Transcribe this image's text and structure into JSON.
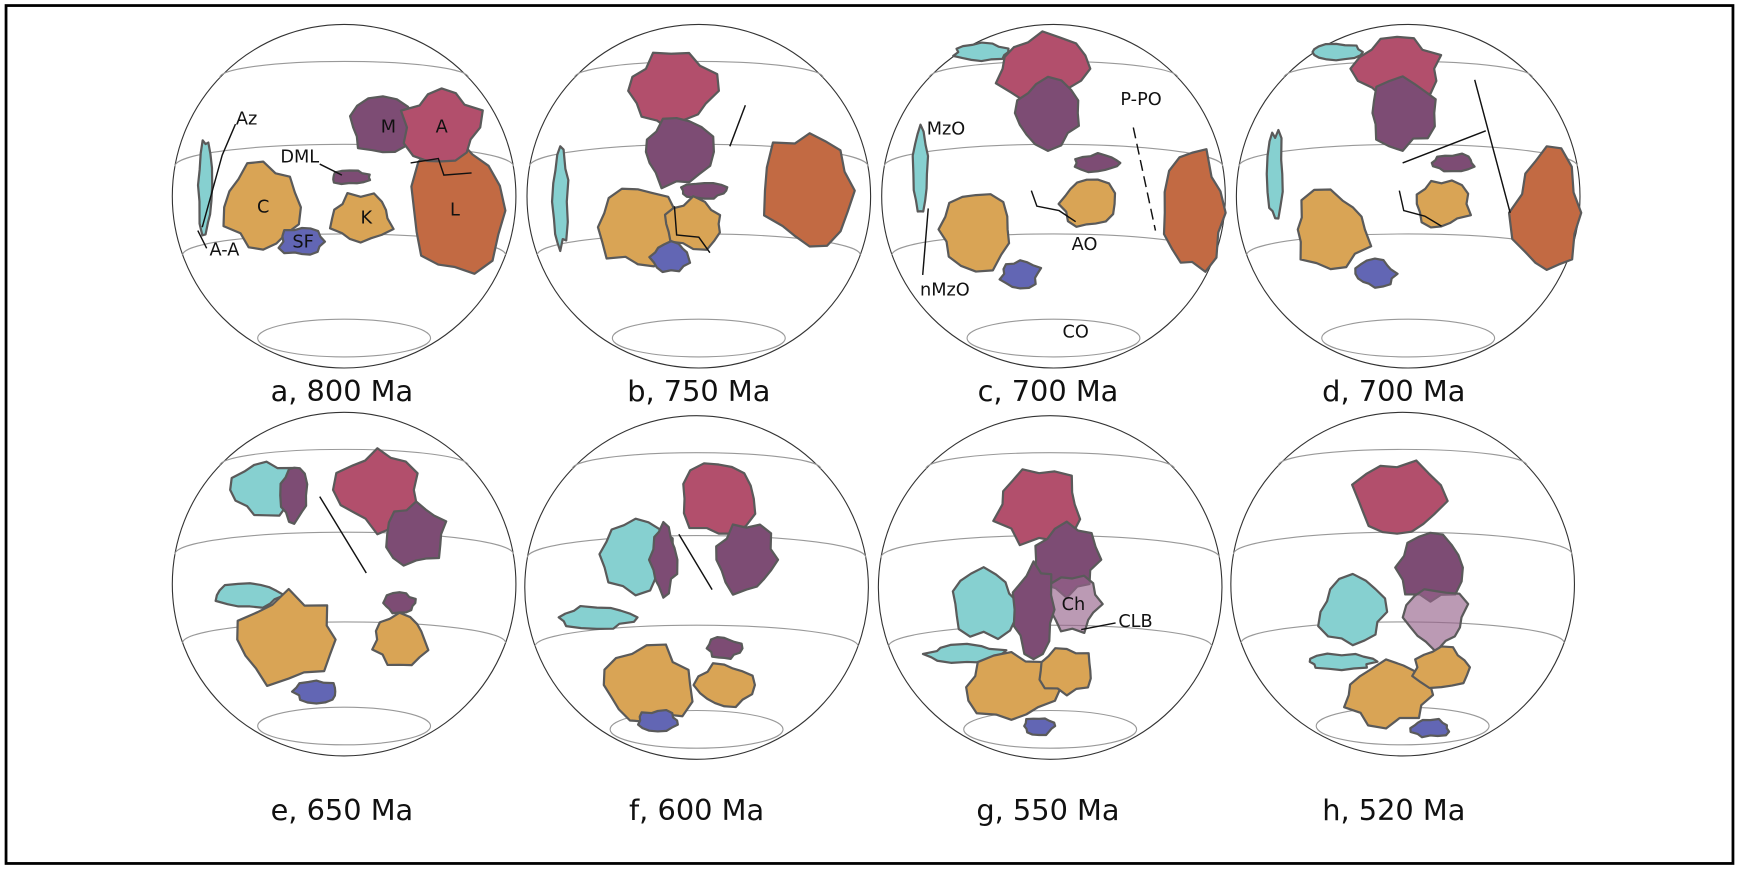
{
  "panels": [
    {
      "caption": "a, 800 Ma",
      "labels": [
        "Az",
        "DML",
        "M",
        "A",
        "C",
        "K",
        "L",
        "SF",
        "A-A"
      ]
    },
    {
      "caption": "b, 750 Ma"
    },
    {
      "caption": "c, 700 Ma",
      "labels": [
        "MzO",
        "P-PO",
        "AO",
        "nMzO",
        "CO"
      ]
    },
    {
      "caption": "d, 700 Ma"
    },
    {
      "caption": "e, 650 Ma"
    },
    {
      "caption": "f, 600 Ma"
    },
    {
      "caption": "g, 550 Ma",
      "labels": [
        "Ch",
        "CLB"
      ]
    },
    {
      "caption": "h, 520 Ma"
    }
  ]
}
